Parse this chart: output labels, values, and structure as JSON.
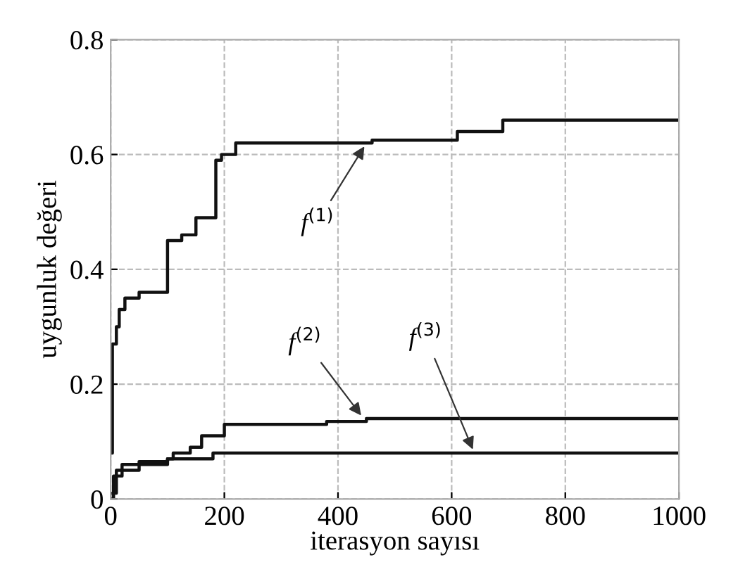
{
  "chart_data": {
    "type": "step",
    "xlabel": "iterasyon sayısı",
    "ylabel": "uygunluk değeri",
    "xlim": [
      0,
      1000
    ],
    "ylim": [
      0,
      0.8
    ],
    "xticks": [
      0,
      200,
      400,
      600,
      800,
      1000
    ],
    "yticks": [
      0,
      0.2,
      0.4,
      0.6,
      0.8
    ],
    "grid": true,
    "marker": "none",
    "line_style": "solid",
    "series": [
      {
        "color": "#111111",
        "x": [
          0,
          3,
          10,
          15,
          25,
          50,
          100,
          125,
          150,
          185,
          195,
          220,
          460,
          610,
          690,
          1000
        ],
        "values": [
          0.08,
          0.27,
          0.3,
          0.33,
          0.35,
          0.36,
          0.45,
          0.46,
          0.49,
          0.59,
          0.6,
          0.62,
          0.625,
          0.64,
          0.66,
          0.66
        ]
      },
      {
        "color": "#111111",
        "x": [
          0,
          10,
          50,
          100,
          110,
          140,
          160,
          200,
          380,
          450,
          1000
        ],
        "values": [
          0.01,
          0.05,
          0.06,
          0.07,
          0.08,
          0.09,
          0.11,
          0.13,
          0.135,
          0.14,
          0.14
        ]
      },
      {
        "color": "#111111",
        "x": [
          0,
          5,
          20,
          50,
          100,
          180,
          1000
        ],
        "values": [
          0,
          0.04,
          0.06,
          0.065,
          0.07,
          0.08,
          0.08
        ]
      }
    ],
    "annotations": [
      {
        "text": "f$^{(1)}$",
        "x": 450,
        "y": 0.62
      },
      {
        "text": "f$^{(2)}$",
        "x": 445,
        "y": 0.14
      },
      {
        "text": "f$^{(3)}$",
        "x": 640,
        "y": 0.08
      }
    ]
  }
}
